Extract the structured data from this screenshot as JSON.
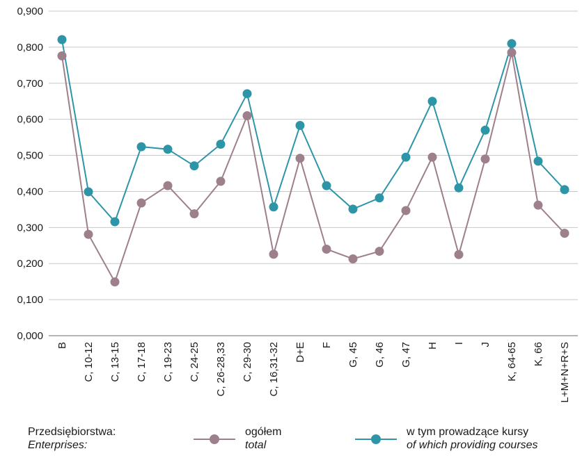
{
  "chart_data": {
    "type": "line",
    "categories": [
      "B",
      "C, 10-12",
      "C, 13-15",
      "C, 17-18",
      "C, 19-23",
      "C, 24-25",
      "C, 26-28,33",
      "C, 29-30",
      "C, 16,31-32",
      "D+E",
      "F",
      "G, 45",
      "G, 46",
      "G, 47",
      "H",
      "I",
      "J",
      "K, 64-65",
      "K, 66",
      "L+M+N+R+S"
    ],
    "series": [
      {
        "name": "ogółem",
        "name_en": "total",
        "color": "#9e7f8c",
        "values": [
          0.776,
          0.281,
          0.149,
          0.368,
          0.416,
          0.338,
          0.428,
          0.61,
          0.226,
          0.492,
          0.24,
          0.213,
          0.234,
          0.347,
          0.495,
          0.225,
          0.49,
          0.785,
          0.362,
          0.284
        ]
      },
      {
        "name": "w tym prowadzące kursy",
        "name_en": "of which providing courses",
        "color": "#2e95a8",
        "values": [
          0.821,
          0.399,
          0.316,
          0.524,
          0.517,
          0.471,
          0.531,
          0.671,
          0.357,
          0.583,
          0.416,
          0.351,
          0.382,
          0.495,
          0.65,
          0.41,
          0.57,
          0.81,
          0.484,
          0.405
        ]
      }
    ],
    "ylim": [
      0,
      0.9
    ],
    "yticks": [
      "0,000",
      "0,100",
      "0,200",
      "0,300",
      "0,400",
      "0,500",
      "0,600",
      "0,700",
      "0,800",
      "0,900"
    ],
    "grid": true
  },
  "legend": {
    "title": "Przedsiębiorstwa:",
    "title_en": "Enterprises:",
    "s1": "ogółem",
    "s1_en": "total",
    "s2": "w tym prowadzące kursy",
    "s2_en": "of which providing courses"
  }
}
